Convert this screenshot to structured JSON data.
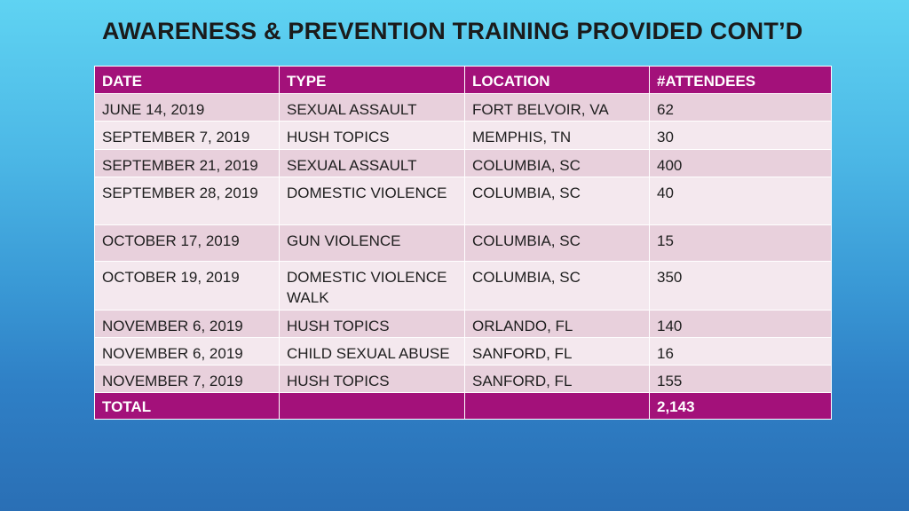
{
  "title": "AWARENESS & PREVENTION TRAINING PROVIDED CONT’D",
  "table": {
    "headers": [
      "DATE",
      "TYPE",
      "LOCATION",
      "#ATTENDEES"
    ],
    "rows": [
      [
        "JUNE 14, 2019",
        "SEXUAL ASSAULT",
        "FORT BELVOIR, VA",
        "62"
      ],
      [
        "SEPTEMBER 7, 2019",
        "HUSH TOPICS",
        "MEMPHIS, TN",
        "30"
      ],
      [
        "SEPTEMBER 21, 2019",
        "SEXUAL ASSAULT",
        "COLUMBIA, SC",
        "400"
      ],
      [
        "SEPTEMBER 28, 2019",
        "DOMESTIC VIOLENCE",
        "COLUMBIA, SC",
        "40"
      ],
      [
        "OCTOBER 17, 2019",
        "GUN VIOLENCE",
        "COLUMBIA, SC",
        "15"
      ],
      [
        "OCTOBER 19, 2019",
        "DOMESTIC VIOLENCE WALK",
        "COLUMBIA, SC",
        "350"
      ],
      [
        "NOVEMBER 6, 2019",
        "HUSH TOPICS",
        "ORLANDO, FL",
        "140"
      ],
      [
        "NOVEMBER 6, 2019",
        "CHILD SEXUAL ABUSE",
        "SANFORD, FL",
        "16"
      ],
      [
        "NOVEMBER 7, 2019",
        "HUSH TOPICS",
        "SANFORD, FL",
        "155"
      ]
    ],
    "total": [
      "TOTAL",
      "",
      "",
      "2,143"
    ]
  }
}
